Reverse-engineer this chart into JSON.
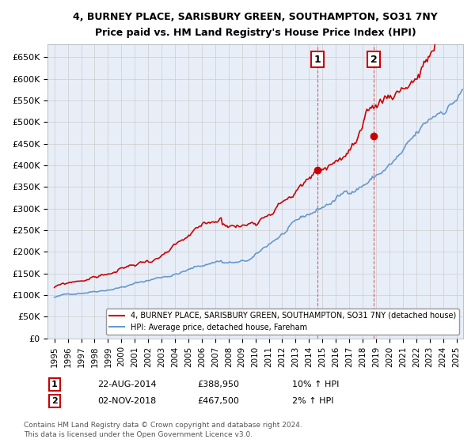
{
  "title": "4, BURNEY PLACE, SARISBURY GREEN, SOUTHAMPTON, SO31 7NY",
  "subtitle": "Price paid vs. HM Land Registry's House Price Index (HPI)",
  "ylim": [
    0,
    680000
  ],
  "yticks": [
    0,
    50000,
    100000,
    150000,
    200000,
    250000,
    300000,
    350000,
    400000,
    450000,
    500000,
    550000,
    600000,
    650000
  ],
  "ytick_labels": [
    "£0",
    "£50K",
    "£100K",
    "£150K",
    "£200K",
    "£250K",
    "£300K",
    "£350K",
    "£400K",
    "£450K",
    "£500K",
    "£550K",
    "£600K",
    "£650K"
  ],
  "xlim_start": 1994.5,
  "xlim_end": 2025.5,
  "hpi_color": "#6699cc",
  "price_color": "#cc0000",
  "marker_color": "#cc0000",
  "grid_color": "#cccccc",
  "legend_label_price": "4, BURNEY PLACE, SARISBURY GREEN, SOUTHAMPTON, SO31 7NY (detached house)",
  "legend_label_hpi": "HPI: Average price, detached house, Fareham",
  "point1_label": "1",
  "point1_date": "22-AUG-2014",
  "point1_price": "£388,950",
  "point1_hpi": "10% ↑ HPI",
  "point1_x": 2014.64,
  "point1_y": 388950,
  "point2_label": "2",
  "point2_date": "02-NOV-2018",
  "point2_price": "£467,500",
  "point2_hpi": "2% ↑ HPI",
  "point2_x": 2018.84,
  "point2_y": 467500,
  "footnote": "Contains HM Land Registry data © Crown copyright and database right 2024.\nThis data is licensed under the Open Government Licence v3.0.",
  "background_color": "#e8eef8"
}
